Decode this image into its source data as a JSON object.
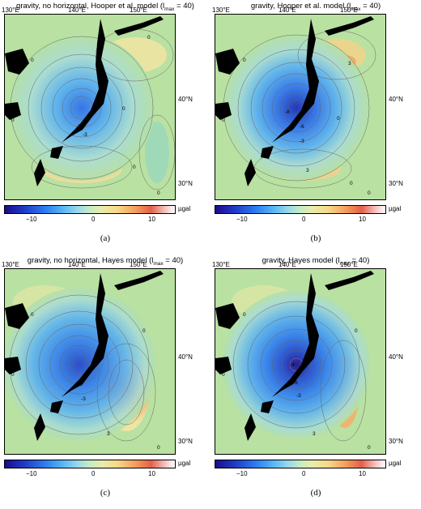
{
  "panels": [
    {
      "title_prefix": "gravity, no horizontal, Hooper et al. model (l",
      "title_sub": "max",
      "title_suffix": " = 40)",
      "caption": "(a)",
      "contour_labels": [
        "0",
        "0",
        "0",
        "0",
        "-5",
        "-3",
        "0",
        "0"
      ]
    },
    {
      "title_prefix": "gravity, Hooper et al. model (l",
      "title_sub": "max",
      "title_suffix": " = 40)",
      "caption": "(b)",
      "contour_labels": [
        "0",
        "3",
        "-8",
        "-6",
        "-3",
        "0",
        "3",
        "0",
        "0",
        "0"
      ]
    },
    {
      "title_prefix": "gravity, no horizontal, Hayes model (l",
      "title_sub": "max",
      "title_suffix": " = 40)",
      "caption": "(c)",
      "contour_labels": [
        "0",
        "0",
        "-6",
        "-3",
        "3",
        "0",
        "0"
      ]
    },
    {
      "title_prefix": "gravity, Hayes model (l",
      "title_sub": "max",
      "title_suffix": " = 40)",
      "caption": "(d)",
      "contour_labels": [
        "0",
        "0",
        "-9",
        "-6",
        "-3",
        "3",
        "0",
        "0"
      ]
    }
  ],
  "lon_ticks": [
    "130°E",
    "140°E",
    "150°E"
  ],
  "lat_ticks": [
    "40°N",
    "30°N"
  ],
  "colorbar": {
    "ticks": [
      "−10",
      "0",
      "10"
    ],
    "unit": "µgal"
  },
  "colors": {
    "background": "#a8dc9a",
    "negative_core": "#1f3ec9",
    "positive": "#f4a260"
  }
}
